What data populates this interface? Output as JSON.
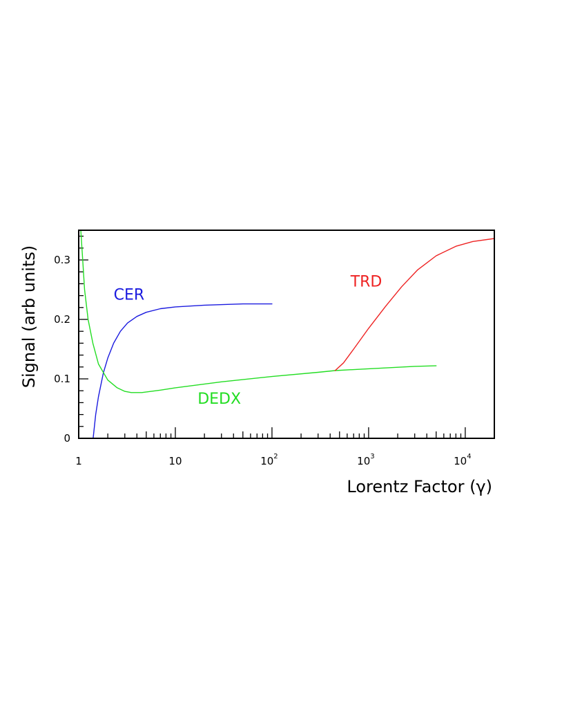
{
  "chart_data": {
    "type": "line",
    "title": "",
    "xlabel": "Lorentz Factor (γ)",
    "ylabel": "Signal (arb units)",
    "xscale": "log",
    "xlim": [
      1,
      20000
    ],
    "ylim": [
      0,
      0.35
    ],
    "grid": false,
    "x_tick_labels": [
      {
        "value": 1,
        "base": "1",
        "exp": ""
      },
      {
        "value": 10,
        "base": "10",
        "exp": ""
      },
      {
        "value": 100,
        "base": "10",
        "exp": "2"
      },
      {
        "value": 1000,
        "base": "10",
        "exp": "3"
      },
      {
        "value": 10000,
        "base": "10",
        "exp": "4"
      }
    ],
    "y_tick_labels": [
      {
        "value": 0,
        "label": "0"
      },
      {
        "value": 0.1,
        "label": "0.1"
      },
      {
        "value": 0.2,
        "label": "0.2"
      },
      {
        "value": 0.3,
        "label": "0.3"
      }
    ],
    "series": [
      {
        "name": "CER",
        "color": "#1a1adf",
        "label_at": [
          2.3,
          0.233
        ],
        "points": [
          [
            1.41,
            0
          ],
          [
            1.5,
            0.04
          ],
          [
            1.6,
            0.07
          ],
          [
            1.8,
            0.11
          ],
          [
            2.0,
            0.135
          ],
          [
            2.3,
            0.16
          ],
          [
            2.7,
            0.18
          ],
          [
            3.2,
            0.194
          ],
          [
            4,
            0.205
          ],
          [
            5,
            0.212
          ],
          [
            7,
            0.218
          ],
          [
            10,
            0.221
          ],
          [
            20,
            0.224
          ],
          [
            50,
            0.226
          ],
          [
            100,
            0.226
          ]
        ]
      },
      {
        "name": "DEDX",
        "color": "#22dd22",
        "label_at": [
          17,
          0.058
        ],
        "points": [
          [
            1.05,
            0.35
          ],
          [
            1.1,
            0.3
          ],
          [
            1.15,
            0.25
          ],
          [
            1.25,
            0.2
          ],
          [
            1.4,
            0.16
          ],
          [
            1.6,
            0.125
          ],
          [
            2.0,
            0.098
          ],
          [
            2.5,
            0.085
          ],
          [
            3.0,
            0.079
          ],
          [
            3.5,
            0.077
          ],
          [
            4.5,
            0.077
          ],
          [
            7,
            0.081
          ],
          [
            10,
            0.085
          ],
          [
            30,
            0.095
          ],
          [
            100,
            0.104
          ],
          [
            300,
            0.111
          ],
          [
            450,
            0.114
          ],
          [
            1000,
            0.117
          ],
          [
            3000,
            0.121
          ],
          [
            5000,
            0.122
          ]
        ]
      },
      {
        "name": "TRD",
        "color": "#ee2222",
        "label_at": [
          650,
          0.255
        ],
        "points": [
          [
            450,
            0.114
          ],
          [
            550,
            0.127
          ],
          [
            700,
            0.15
          ],
          [
            1000,
            0.185
          ],
          [
            1500,
            0.222
          ],
          [
            2200,
            0.255
          ],
          [
            3200,
            0.283
          ],
          [
            5000,
            0.307
          ],
          [
            8000,
            0.323
          ],
          [
            12000,
            0.331
          ],
          [
            20000,
            0.336
          ]
        ]
      }
    ]
  }
}
